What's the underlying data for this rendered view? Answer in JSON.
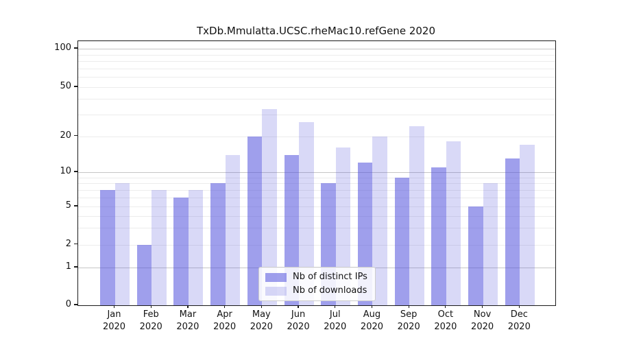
{
  "chart_data": {
    "type": "bar",
    "title": "TxDb.Mmulatta.UCSC.rheMac10.refGene 2020",
    "categories": [
      "Jan",
      "Feb",
      "Mar",
      "Apr",
      "May",
      "Jun",
      "Jul",
      "Aug",
      "Sep",
      "Oct",
      "Nov",
      "Dec"
    ],
    "category_sublabel": "2020",
    "series": [
      {
        "name": "Nb of distinct IPs",
        "values": [
          7,
          2,
          6,
          8,
          20,
          14,
          8,
          12,
          9,
          11,
          5,
          13
        ],
        "color": "rgba(80,80,220,0.55)"
      },
      {
        "name": "Nb of downloads",
        "values": [
          8,
          7,
          7,
          14,
          33,
          26,
          16,
          20,
          24,
          18,
          8,
          17
        ],
        "color": "rgba(80,80,220,0.22)"
      }
    ],
    "y_axis": {
      "scale": "log-like",
      "range": [
        0,
        100
      ],
      "ticks": [
        0,
        1,
        2,
        5,
        10,
        20,
        50,
        100
      ],
      "major_gridlines": [
        1,
        10,
        100
      ],
      "minor_gridlines": [
        2,
        3,
        4,
        5,
        6,
        7,
        8,
        9,
        20,
        30,
        40,
        50,
        60,
        70,
        80,
        90
      ]
    },
    "legend": {
      "entries": [
        "Nb of distinct IPs",
        "Nb of downloads"
      ],
      "position": "bottom-center"
    }
  },
  "colors": {
    "grid_major": "#c6c6c6",
    "grid_minor": "#ececec",
    "spine": "#1a1a1a",
    "text": "#111111"
  }
}
